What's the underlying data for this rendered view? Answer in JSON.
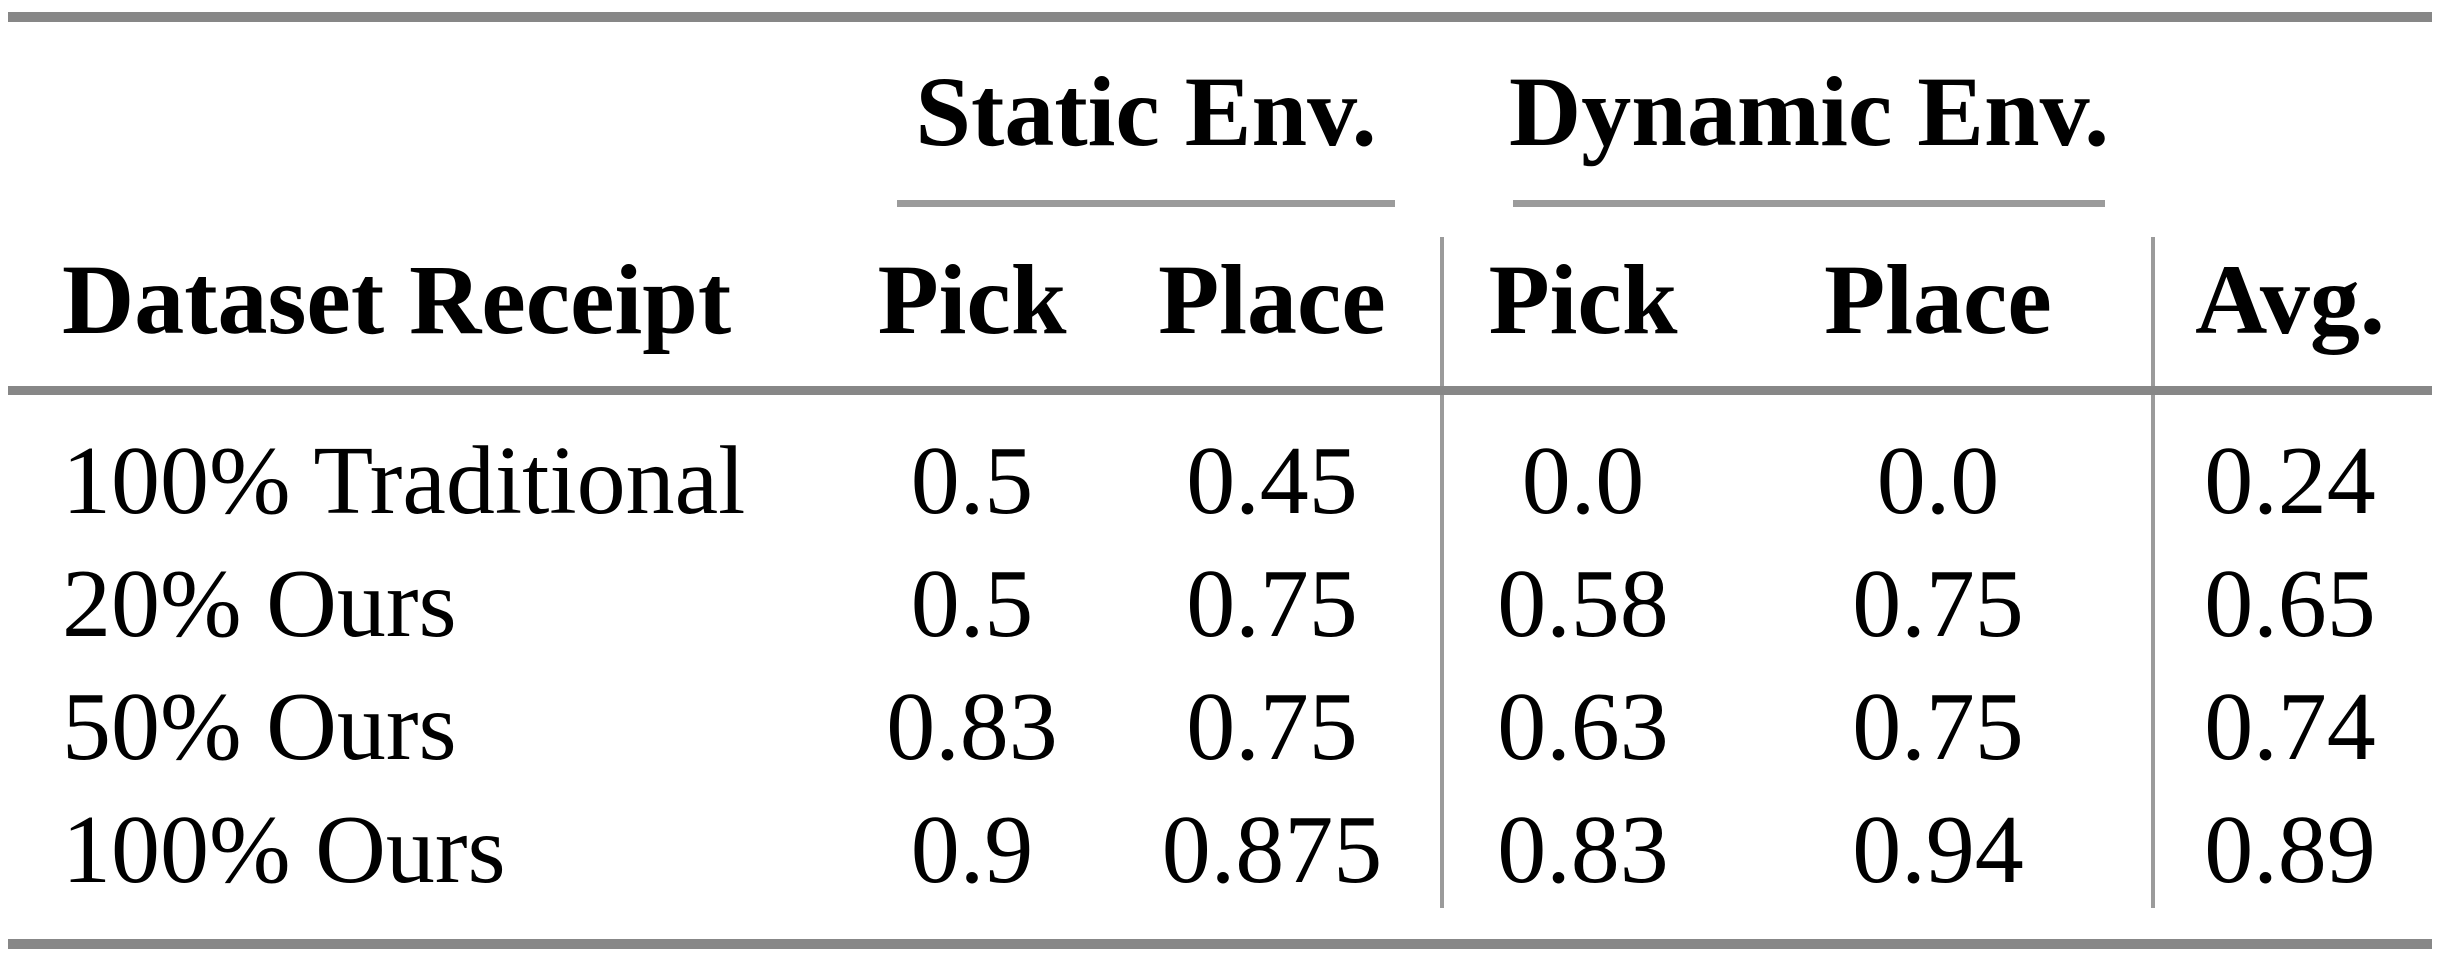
{
  "table": {
    "groups": [
      {
        "label": "Static Env."
      },
      {
        "label": "Dynamic Env."
      }
    ],
    "header": {
      "dataset": "Dataset Receipt",
      "static_pick": "Pick",
      "static_place": "Place",
      "dynamic_pick": "Pick",
      "dynamic_place": "Place",
      "avg": "Avg."
    },
    "rows": [
      {
        "label": "100% Traditional",
        "static_pick": "0.5",
        "static_place": "0.45",
        "dynamic_pick": "0.0",
        "dynamic_place": "0.0",
        "avg": "0.24"
      },
      {
        "label": "20% Ours",
        "static_pick": "0.5",
        "static_place": "0.75",
        "dynamic_pick": "0.58",
        "dynamic_place": "0.75",
        "avg": "0.65"
      },
      {
        "label": "50% Ours",
        "static_pick": "0.83",
        "static_place": "0.75",
        "dynamic_pick": "0.63",
        "dynamic_place": "0.75",
        "avg": "0.74"
      },
      {
        "label": "100% Ours",
        "static_pick": "0.9",
        "static_place": "0.875",
        "dynamic_pick": "0.83",
        "dynamic_place": "0.94",
        "avg": "0.89"
      }
    ]
  },
  "chart_data": {
    "type": "table",
    "title": "",
    "column_groups": [
      "Static Env.",
      "Dynamic Env."
    ],
    "columns": [
      "Dataset Receipt",
      "Static Env. Pick",
      "Static Env. Place",
      "Dynamic Env. Pick",
      "Dynamic Env. Place",
      "Avg."
    ],
    "rows": [
      [
        "100% Traditional",
        0.5,
        0.45,
        0.0,
        0.0,
        0.24
      ],
      [
        "20% Ours",
        0.5,
        0.75,
        0.58,
        0.75,
        0.65
      ],
      [
        "50% Ours",
        0.83,
        0.75,
        0.63,
        0.75,
        0.74
      ],
      [
        "100% Ours",
        0.9,
        0.875,
        0.83,
        0.94,
        0.89
      ]
    ]
  },
  "colors": {
    "rule_thick": "#878787",
    "rule_thin": "#9b9b9b",
    "text": "#000000",
    "background": "#ffffff"
  }
}
